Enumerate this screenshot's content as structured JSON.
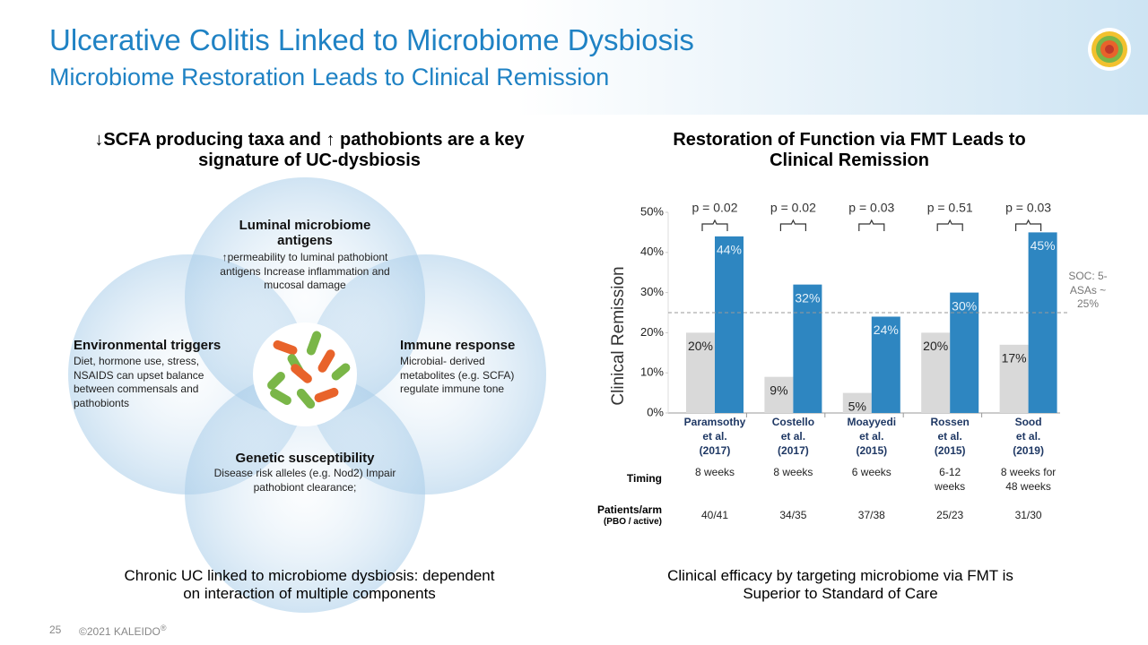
{
  "header": {
    "title": "Ulcerative Colitis Linked to Microbiome Dysbiosis",
    "subtitle": "Microbiome Restoration Leads to Clinical Remission"
  },
  "left": {
    "heading": "↓SCFA producing taxa and ↑ pathobionts are a key signature of UC-dysbiosis",
    "nodes": [
      {
        "title": "Luminal microbiome antigens",
        "text": "↑permeability to luminal pathobiont antigens Increase inflammation and mucosal damage"
      },
      {
        "title": "Environmental triggers",
        "text": "Diet, hormone use, stress, NSAIDS can upset balance between commensals and pathobionts"
      },
      {
        "title": "Immune response",
        "text": "Microbial- derived metabolites (e.g. SCFA) regulate immune tone"
      },
      {
        "title": "Genetic susceptibility",
        "text": "Disease risk alleles (e.g. Nod2) Impair pathobiont clearance;"
      }
    ],
    "caption": "Chronic UC linked to microbiome dysbiosis: dependent on interaction of multiple components"
  },
  "chart_data": {
    "type": "bar",
    "title": "Restoration of Function via FMT Leads to Clinical Remission",
    "y_label": "Clinical Remission",
    "categories": [
      "Paramsothy\net al.\n(2017)",
      "Costello\net al.\n(2017)",
      "Moayyedi\net al.\n(2015)",
      "Rossen\net al.\n(2015)",
      "Sood\net al.\n(2019)"
    ],
    "series": [
      {
        "color": "#d9d9d9",
        "values": [
          20,
          9,
          5,
          20,
          17
        ],
        "value_labels": [
          "20%",
          "9%",
          "5%",
          "20%",
          "17%"
        ]
      },
      {
        "color": "#2e86c1",
        "values": [
          44,
          32,
          24,
          30,
          45
        ],
        "value_labels": [
          "44%",
          "32%",
          "24%",
          "30%",
          "45%"
        ]
      }
    ],
    "ylim": [
      0,
      50
    ],
    "yticks": [
      {
        "value": 0,
        "label": "0%"
      },
      {
        "value": 10,
        "label": "10%"
      },
      {
        "value": 20,
        "label": "20%"
      },
      {
        "value": 30,
        "label": "30%"
      },
      {
        "value": 40,
        "label": "40%"
      },
      {
        "value": 50,
        "label": "50%"
      }
    ],
    "grid": false,
    "p_values": [
      "p = 0.02",
      "p = 0.02",
      "p = 0.03",
      "p = 0.51",
      "p = 0.03"
    ],
    "reference_line": {
      "value": 25,
      "label": "SOC: 5-ASAs ~ 25%"
    }
  },
  "table": {
    "rows": [
      {
        "label": "Timing",
        "cells": [
          "8 weeks",
          "8 weeks",
          "6 weeks",
          "6-12\nweeks",
          "8 weeks for\n48 weeks"
        ]
      },
      {
        "label": "Patients/arm",
        "sublabel": "(PBO / active)",
        "cells": [
          "40/41",
          "34/35",
          "37/38",
          "25/23",
          "31/30"
        ]
      }
    ]
  },
  "right": {
    "caption": "Clinical efficacy by targeting microbiome via FMT is Superior to Standard of Care"
  },
  "footer": {
    "page": "25",
    "copyright": "©2021 KALEIDO",
    "mark": "®"
  }
}
